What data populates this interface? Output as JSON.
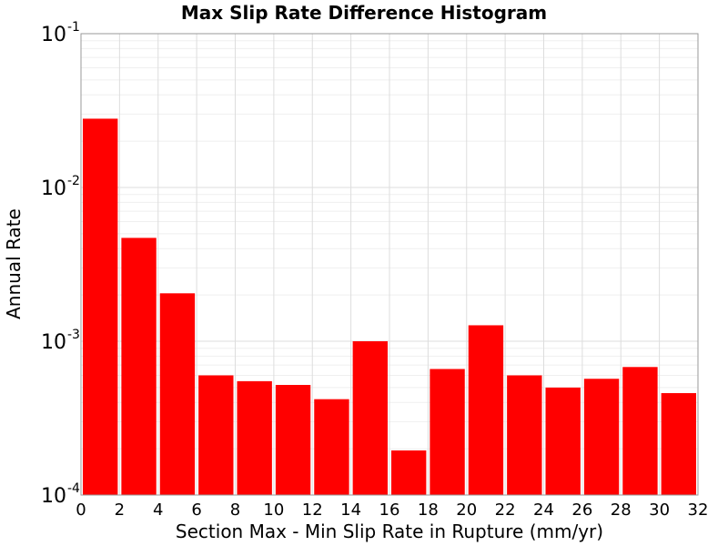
{
  "chart_data": {
    "type": "bar",
    "title": "Max Slip Rate Difference Histogram",
    "xlabel": "Section Max - Min Slip Rate in Rupture (mm/yr)",
    "ylabel": "Annual Rate",
    "x_ticks": [
      "0",
      "2",
      "4",
      "6",
      "8",
      "10",
      "12",
      "14",
      "16",
      "18",
      "20",
      "22",
      "24",
      "26",
      "28",
      "30",
      "32"
    ],
    "y_ticks": [
      {
        "base": "10",
        "exp": "-4"
      },
      {
        "base": "10",
        "exp": "-3"
      },
      {
        "base": "10",
        "exp": "-2"
      },
      {
        "base": "10",
        "exp": "-1"
      }
    ],
    "xlim": [
      0,
      32
    ],
    "ylim": [
      0.0001,
      0.1
    ],
    "y_scale": "log",
    "grid": true,
    "bar_color": "#ff0000",
    "bins": [
      {
        "x0": 0,
        "x1": 2,
        "value": 0.028
      },
      {
        "x0": 2,
        "x1": 4,
        "value": 0.0047
      },
      {
        "x0": 4,
        "x1": 6,
        "value": 0.00205
      },
      {
        "x0": 6,
        "x1": 8,
        "value": 0.0006
      },
      {
        "x0": 8,
        "x1": 10,
        "value": 0.00055
      },
      {
        "x0": 10,
        "x1": 12,
        "value": 0.00052
      },
      {
        "x0": 12,
        "x1": 14,
        "value": 0.00042
      },
      {
        "x0": 14,
        "x1": 16,
        "value": 0.001
      },
      {
        "x0": 16,
        "x1": 18,
        "value": 0.000195
      },
      {
        "x0": 18,
        "x1": 20,
        "value": 0.00066
      },
      {
        "x0": 20,
        "x1": 22,
        "value": 0.00127
      },
      {
        "x0": 22,
        "x1": 24,
        "value": 0.0006
      },
      {
        "x0": 24,
        "x1": 26,
        "value": 0.0005
      },
      {
        "x0": 26,
        "x1": 28,
        "value": 0.00057
      },
      {
        "x0": 28,
        "x1": 30,
        "value": 0.00068
      },
      {
        "x0": 30,
        "x1": 32,
        "value": 0.00046
      }
    ]
  }
}
